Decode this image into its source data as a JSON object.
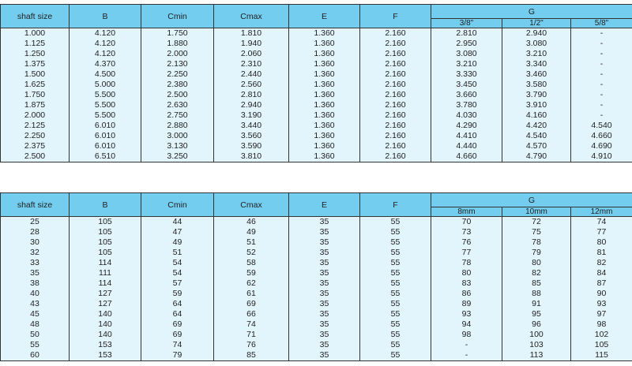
{
  "tables": [
    {
      "columns": [
        "shaft size",
        "B",
        "Cmin",
        "Cmax",
        "E",
        "F"
      ],
      "group": "G",
      "subcolumns": [
        "3/8\"",
        "1/2\"",
        "5/8\""
      ],
      "rows": [
        [
          "1.000",
          "4.120",
          "1.750",
          "1.810",
          "1.360",
          "2.160",
          "2.810",
          "2.940",
          "-"
        ],
        [
          "1.125",
          "4.120",
          "1.880",
          "1.940",
          "1.360",
          "2.160",
          "2.950",
          "3.080",
          "-"
        ],
        [
          "1.250",
          "4.120",
          "2.000",
          "2.060",
          "1.360",
          "2.160",
          "3.080",
          "3.210",
          "-"
        ],
        [
          "1.375",
          "4.370",
          "2.130",
          "2.310",
          "1.360",
          "2.160",
          "3.210",
          "3.340",
          "-"
        ],
        [
          "1.500",
          "4.500",
          "2.250",
          "2.440",
          "1.360",
          "2.160",
          "3.330",
          "3.460",
          "-"
        ],
        [
          "1.625",
          "5.000",
          "2.380",
          "2.560",
          "1.360",
          "2.160",
          "3.450",
          "3.580",
          "-"
        ],
        [
          "1.750",
          "5.500",
          "2.500",
          "2.810",
          "1.360",
          "2.160",
          "3.660",
          "3.790",
          "-"
        ],
        [
          "1.875",
          "5.500",
          "2.630",
          "2.940",
          "1.360",
          "2.160",
          "3.780",
          "3.910",
          "-"
        ],
        [
          "2.000",
          "5.500",
          "2.750",
          "3.190",
          "1.360",
          "2.160",
          "4.030",
          "4.160",
          "-"
        ],
        [
          "2.125",
          "6.010",
          "2.880",
          "3.440",
          "1.360",
          "2.160",
          "4.290",
          "4.420",
          "4.540"
        ],
        [
          "2.250",
          "6.010",
          "3.000",
          "3.560",
          "1.360",
          "2.160",
          "4.410",
          "4.540",
          "4.660"
        ],
        [
          "2.375",
          "6.010",
          "3.130",
          "3.590",
          "1.360",
          "2.160",
          "4.440",
          "4.570",
          "4.690"
        ],
        [
          "2.500",
          "6.510",
          "3.250",
          "3.810",
          "1.360",
          "2.160",
          "4.660",
          "4.790",
          "4.910"
        ]
      ]
    },
    {
      "columns": [
        "shaft size",
        "B",
        "Cmin",
        "Cmax",
        "E",
        "F"
      ],
      "group": "G",
      "subcolumns": [
        "8mm",
        "10mm",
        "12mm"
      ],
      "rows": [
        [
          "25",
          "105",
          "44",
          "46",
          "35",
          "55",
          "70",
          "72",
          "74"
        ],
        [
          "28",
          "105",
          "47",
          "49",
          "35",
          "55",
          "73",
          "75",
          "77"
        ],
        [
          "30",
          "105",
          "49",
          "51",
          "35",
          "55",
          "76",
          "78",
          "80"
        ],
        [
          "32",
          "105",
          "51",
          "52",
          "35",
          "55",
          "77",
          "79",
          "81"
        ],
        [
          "33",
          "114",
          "54",
          "58",
          "35",
          "55",
          "78",
          "80",
          "82"
        ],
        [
          "35",
          "111",
          "54",
          "59",
          "35",
          "55",
          "80",
          "82",
          "84"
        ],
        [
          "38",
          "114",
          "57",
          "62",
          "35",
          "55",
          "83",
          "85",
          "87"
        ],
        [
          "40",
          "127",
          "59",
          "61",
          "35",
          "55",
          "86",
          "88",
          "90"
        ],
        [
          "43",
          "127",
          "64",
          "69",
          "35",
          "55",
          "89",
          "91",
          "93"
        ],
        [
          "45",
          "140",
          "64",
          "66",
          "35",
          "55",
          "93",
          "95",
          "97"
        ],
        [
          "48",
          "140",
          "69",
          "74",
          "35",
          "55",
          "94",
          "96",
          "98"
        ],
        [
          "50",
          "140",
          "69",
          "71",
          "35",
          "55",
          "98",
          "100",
          "102"
        ],
        [
          "55",
          "153",
          "74",
          "76",
          "35",
          "55",
          "-",
          "103",
          "105"
        ],
        [
          "60",
          "153",
          "79",
          "85",
          "35",
          "55",
          "-",
          "113",
          "115"
        ]
      ]
    }
  ]
}
